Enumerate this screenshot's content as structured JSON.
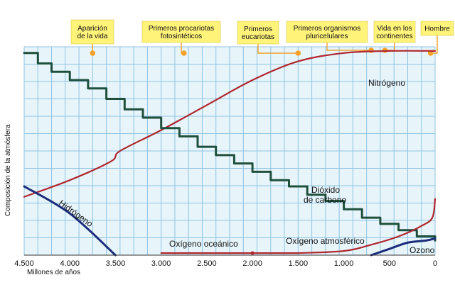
{
  "chart_data": {
    "type": "line",
    "xlabel": "Millones de años",
    "ylabel": "Composición de la atmósfera",
    "xlim": [
      4500,
      0
    ],
    "x_ticks": [
      "4.500",
      "4.000",
      "3.500",
      "3.000",
      "2.500",
      "2.000",
      "1.500",
      "1.000",
      "500",
      "0"
    ],
    "x_tick_values": [
      4500,
      4000,
      3500,
      3000,
      2500,
      2000,
      1500,
      1000,
      500,
      0
    ],
    "grid": true,
    "colors": {
      "background": "#e7f5fb",
      "grid": "#8fc3e2",
      "event_box": "#fff37a",
      "event_dot": "#f4a12a",
      "event_line": "#f4a12a",
      "nitrogen": "#b0252e",
      "co2": "#1f4f3d",
      "hydrogen": "#1c2c7a",
      "oxygen": "#b0252e",
      "ozone": "#1c2c7a"
    },
    "events": [
      {
        "label_lines": [
          "Aparición",
          "de la vida"
        ],
        "x": 3750
      },
      {
        "label_lines": [
          "Primeros procariotas",
          "fotosintéticos"
        ],
        "x": 2750
      },
      {
        "label_lines": [
          "Primeros",
          "eucariotas"
        ],
        "x": 1500
      },
      {
        "label_lines": [
          "Primeros organismos",
          "pluricelulares"
        ],
        "x": 700
      },
      {
        "label_lines": [
          "Vida en los",
          "continentes"
        ],
        "x": 550
      },
      {
        "label_lines": [
          "Hombre"
        ],
        "x": 50
      }
    ],
    "series": [
      {
        "name": "Nitrógeno",
        "kind": "smooth",
        "points": [
          [
            4500,
            28
          ],
          [
            4000,
            36
          ],
          [
            3550,
            45
          ],
          [
            3450,
            50
          ],
          [
            3000,
            60
          ],
          [
            2500,
            72
          ],
          [
            2000,
            84
          ],
          [
            1500,
            93
          ],
          [
            1000,
            97
          ],
          [
            500,
            98
          ],
          [
            0,
            98
          ]
        ]
      },
      {
        "name": "Dióxido de carbono",
        "kind": "step",
        "points": [
          [
            4500,
            97
          ],
          [
            4350,
            92
          ],
          [
            4200,
            88
          ],
          [
            4000,
            84
          ],
          [
            3800,
            80
          ],
          [
            3600,
            75
          ],
          [
            3400,
            70
          ],
          [
            3200,
            66
          ],
          [
            3000,
            61
          ],
          [
            2800,
            57
          ],
          [
            2600,
            52
          ],
          [
            2400,
            48
          ],
          [
            2200,
            44
          ],
          [
            2000,
            40
          ],
          [
            1800,
            36
          ],
          [
            1600,
            33
          ],
          [
            1400,
            29
          ],
          [
            1200,
            26
          ],
          [
            1000,
            22
          ],
          [
            800,
            18
          ],
          [
            600,
            15
          ],
          [
            400,
            12
          ],
          [
            200,
            9
          ],
          [
            0,
            7
          ]
        ]
      },
      {
        "name": "Hidrógeno",
        "kind": "smooth",
        "points": [
          [
            4500,
            33
          ],
          [
            4000,
            20
          ],
          [
            3500,
            0
          ]
        ]
      },
      {
        "name": "Oxígeno oceánico",
        "kind": "smooth",
        "points": [
          [
            3000,
            1
          ],
          [
            2500,
            1
          ],
          [
            2000,
            1
          ],
          [
            1500,
            1
          ]
        ]
      },
      {
        "name": "Oxígeno atmosférico",
        "kind": "smooth",
        "points": [
          [
            1500,
            1
          ],
          [
            1000,
            2
          ],
          [
            700,
            5
          ],
          [
            400,
            9
          ],
          [
            150,
            14
          ],
          [
            30,
            18
          ],
          [
            0,
            27
          ]
        ]
      },
      {
        "name": "Ozono",
        "kind": "smooth",
        "points": [
          [
            700,
            0
          ],
          [
            500,
            3
          ],
          [
            300,
            6
          ],
          [
            100,
            7
          ],
          [
            0,
            8
          ]
        ]
      }
    ],
    "series_labels": {
      "nitrogeno": "Nitrógeno",
      "dioxido_line1": "Dióxido",
      "dioxido_line2": "de carbono",
      "hidrogeno": "Hidrógeno",
      "oxigeno_oceanico": "Oxígeno oceánico",
      "oxigeno_atmosferico": "Oxígeno atmosférico",
      "ozono": "Ozono"
    }
  }
}
